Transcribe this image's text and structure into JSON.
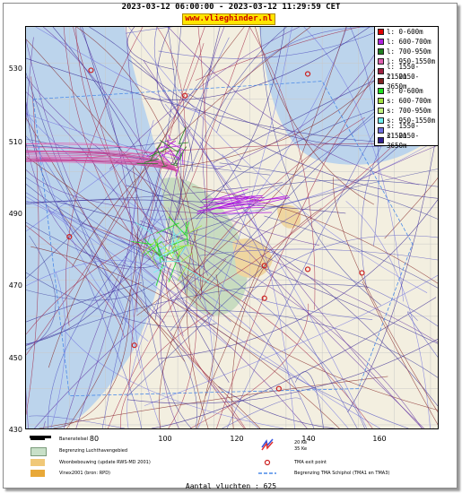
{
  "title": "2023-03-12 06:00:00 - 2023-03-12 11:29:59 CET",
  "site": "www.vlieghinder.nl",
  "axes": {
    "y_ticks": [
      "530",
      "510",
      "490",
      "470",
      "450",
      "430"
    ],
    "x_ticks": [
      "80",
      "100",
      "120",
      "140",
      "160"
    ],
    "x_range": [
      68,
      182
    ],
    "y_range": [
      429,
      540
    ]
  },
  "legend": [
    {
      "label": "l: 0-600m",
      "color": "#e00000"
    },
    {
      "label": "l: 600-700m",
      "color": "#b020e0"
    },
    {
      "label": "l: 700-950m",
      "color": "#208020"
    },
    {
      "label": "l: 950-1550m",
      "color": "#e060b0"
    },
    {
      "label": "l: 1550-2150m",
      "color": "#a02040"
    },
    {
      "label": "l: 2150-3650m",
      "color": "#802020"
    },
    {
      "label": "s: 0-600m",
      "color": "#20e020"
    },
    {
      "label": "s: 600-700m",
      "color": "#a0e040"
    },
    {
      "label": "s: 700-950m",
      "color": "#c0f080"
    },
    {
      "label": "s: 950-1550m",
      "color": "#70f0f0"
    },
    {
      "label": "s: 1550-2150m",
      "color": "#7070e0"
    },
    {
      "label": "s: 2150-3650m",
      "color": "#302090"
    }
  ],
  "map_key": {
    "runway": "Banenstelsel",
    "airport": "Begrenzing Luchthavengebied",
    "housing": "Woonbebouwing (update RWS-MD 2001)",
    "vinex": "Vinex2001 (bron: RPD)",
    "ke20": "20 Ke",
    "ke35": "35 Ke",
    "tma_exit": "TMA exit point",
    "tma_boundary": "Begrenzing TMA Schiphol (TMA1 en TMA3)"
  },
  "colors": {
    "land": "#f3efe0",
    "water": "#bcd4ec",
    "green": "#c8dcc0",
    "urban": "#efd6a0"
  },
  "flight_count": "Aantal vluchten : 625",
  "exit_points": [
    [
      86,
      528
    ],
    [
      112,
      521
    ],
    [
      146,
      527
    ],
    [
      80,
      482
    ],
    [
      146,
      473
    ],
    [
      161,
      472
    ],
    [
      134,
      465
    ],
    [
      134,
      474
    ],
    [
      98,
      452
    ],
    [
      138,
      440
    ]
  ]
}
